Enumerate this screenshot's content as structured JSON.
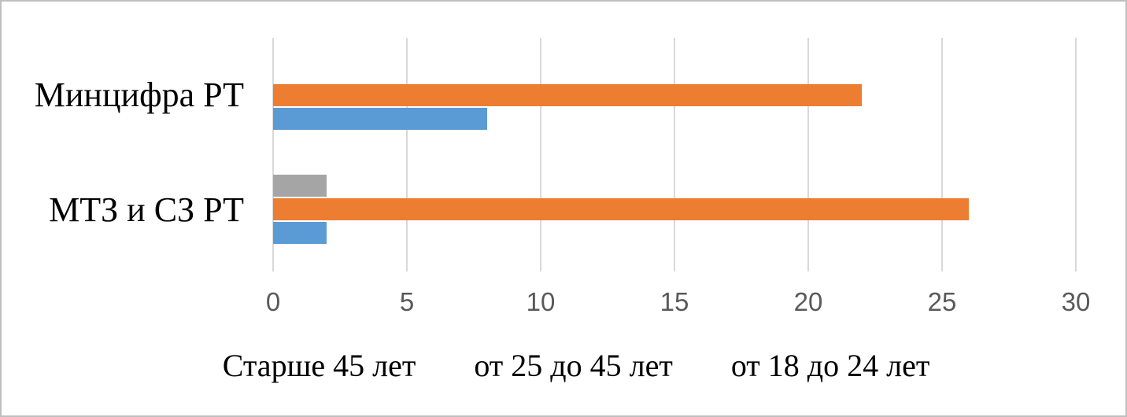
{
  "chart_data": {
    "type": "bar",
    "orientation": "horizontal",
    "categories": [
      "Минцифра РТ",
      "МТЗ и СЗ РТ"
    ],
    "series": [
      {
        "name": "Старше 45 лет",
        "color": "#A5A5A5",
        "values": [
          0,
          2
        ]
      },
      {
        "name": "от 25 до 45 лет",
        "color": "#ED7D31",
        "values": [
          22,
          26
        ]
      },
      {
        "name": "от 18 до 24 лет",
        "color": "#5B9BD5",
        "values": [
          8,
          2
        ]
      }
    ],
    "xticks": [
      0,
      5,
      10,
      15,
      20,
      25,
      30
    ],
    "xlim": [
      0,
      30
    ],
    "grid": true,
    "gridline_color": "#D9D9D9",
    "axis_text_color": "#595959",
    "legend_position": "bottom"
  }
}
